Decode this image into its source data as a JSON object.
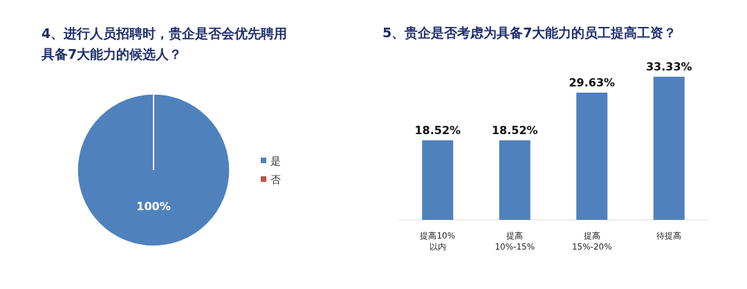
{
  "chart_data": [
    {
      "type": "pie",
      "title": "4、进行人员招聘时，贵企是否会优先聘用具备7大能力的候选人？",
      "categories": [
        "是",
        "否"
      ],
      "values": [
        100,
        0
      ],
      "colors": [
        "#4f81bd",
        "#c0504d"
      ],
      "value_labels": [
        "100%",
        null
      ],
      "legend": "right"
    },
    {
      "type": "bar",
      "title": "5、贵企是否考虑为具备7大能力的员工提高工资？",
      "categories": [
        "提高10%\n以内",
        "提高\n10%-15%",
        "提高\n15%-20%",
        "待提高"
      ],
      "values": [
        18.52,
        18.52,
        29.63,
        33.33
      ],
      "color": "#4f81bd",
      "value_labels": [
        "18.52%",
        "18.52%",
        "29.63%",
        "33.33%"
      ]
    }
  ]
}
